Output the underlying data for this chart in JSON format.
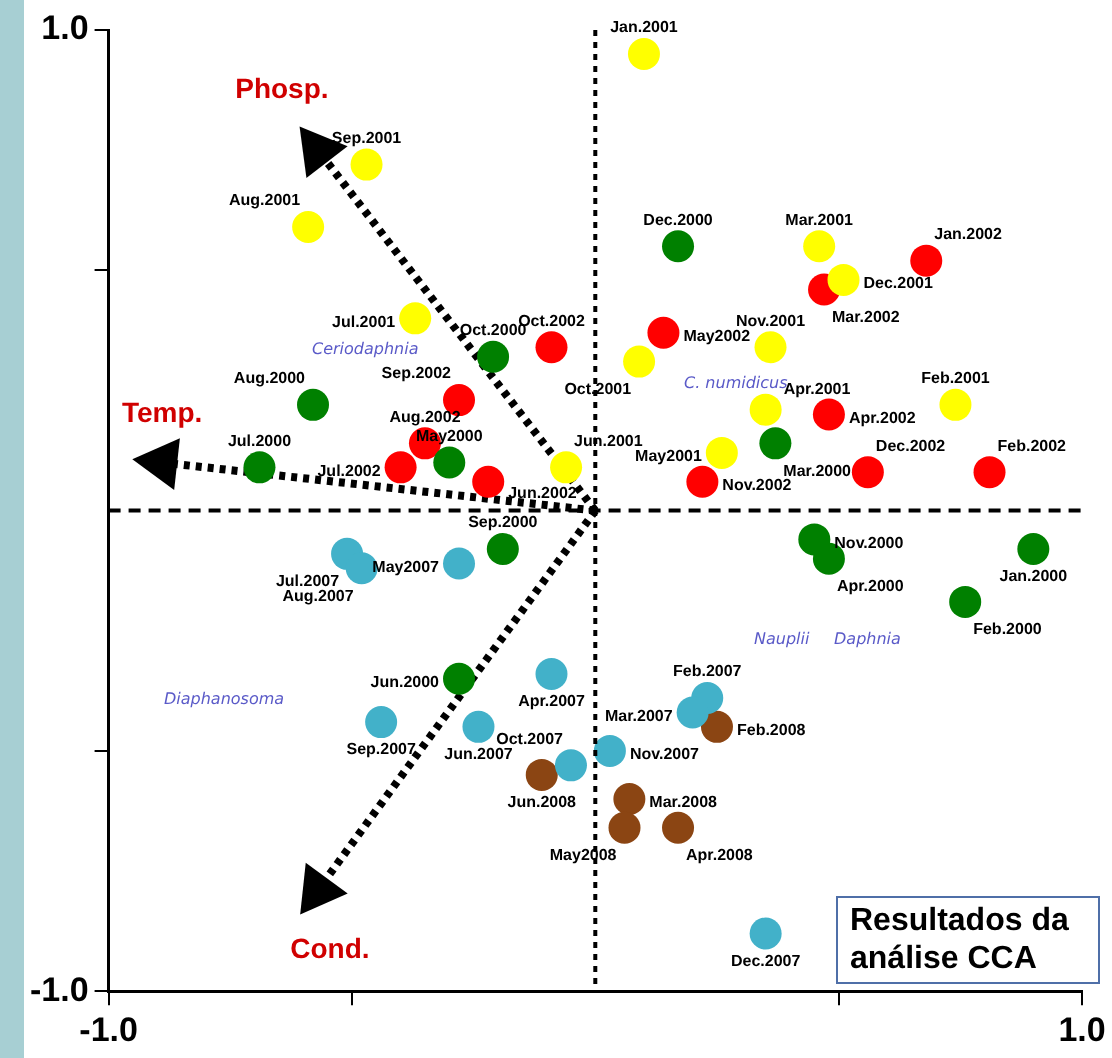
{
  "chart_data": {
    "type": "scatter",
    "xlim": [
      -1,
      1
    ],
    "ylim": [
      -1,
      1
    ],
    "xticks": [
      {
        "value": -1,
        "label": "-1.0"
      },
      {
        "value": -0.5,
        "label": null
      },
      {
        "value": 0.5,
        "label": null
      },
      {
        "value": 1,
        "label": "1.0"
      }
    ],
    "yticks": [
      {
        "value": -1,
        "label": "-1.0"
      },
      {
        "value": -0.5,
        "label": null
      },
      {
        "value": 0.5,
        "label": null
      },
      {
        "value": 1,
        "label": "1.0"
      }
    ],
    "grid": false,
    "legend": false,
    "marker": "circle",
    "series": [
      {
        "color": "#008000",
        "x": [
          -0.21,
          -0.58,
          -0.3,
          -0.69,
          0.17,
          0.37,
          -0.19,
          -0.28,
          0.45,
          0.48,
          0.9,
          0.76
        ],
        "values": [
          0.32,
          0.22,
          0.1,
          0.09,
          0.55,
          0.14,
          -0.08,
          -0.35,
          -0.06,
          -0.1,
          -0.08,
          -0.19
        ],
        "value_labels": [
          "Oct.2000",
          "Aug.2000",
          "May2000",
          "Jul.2000",
          "Dec.2000",
          "Mar.2000",
          "Sep.2000",
          "Jun.2000",
          "Nov.2000",
          "Apr.2000",
          "Jan.2000",
          "Feb.2000"
        ]
      },
      {
        "color": "#ffff00",
        "x": [
          -0.47,
          -0.59,
          -0.37,
          -0.06,
          0.1,
          0.46,
          0.51,
          0.09,
          0.36,
          0.35,
          0.74,
          0.26
        ],
        "values": [
          0.72,
          0.59,
          0.4,
          0.09,
          0.95,
          0.55,
          0.48,
          0.31,
          0.34,
          0.21,
          0.22,
          0.12
        ],
        "value_labels": [
          "Sep.2001",
          "Aug.2001",
          "Jul.2001",
          "Jun.2001",
          "Jan.2001",
          "Mar.2001",
          "Dec.2001",
          "Oct.2001",
          "Nov.2001",
          "Apr.2001",
          "Feb.2001",
          "May2001"
        ]
      },
      {
        "color": "#ff0000",
        "x": [
          -0.09,
          -0.28,
          -0.35,
          -0.4,
          -0.22,
          0.68,
          0.47,
          0.14,
          0.48,
          0.22,
          0.56,
          0.81
        ],
        "values": [
          0.34,
          0.23,
          0.14,
          0.09,
          0.06,
          0.52,
          0.46,
          0.37,
          0.2,
          0.06,
          0.08,
          0.08
        ],
        "value_labels": [
          "Oct.2002",
          "Sep.2002",
          "Aug.2002",
          "Jul.2002",
          "Jun.2002",
          "Jan.2002",
          "Mar.2002",
          "May2002",
          "Apr.2002",
          "Nov.2002",
          "Dec.2002",
          "Feb.2002"
        ]
      },
      {
        "color": "#42b1c9",
        "x": [
          -0.51,
          -0.48,
          -0.28,
          -0.09,
          -0.44,
          -0.24,
          -0.05,
          0.23,
          0.2,
          0.03,
          0.35
        ],
        "values": [
          -0.09,
          -0.12,
          -0.11,
          -0.34,
          -0.44,
          -0.45,
          -0.53,
          -0.39,
          -0.42,
          -0.5,
          -0.88
        ],
        "value_labels": [
          "Jul.2007",
          "Aug.2007",
          "May2007",
          "Apr.2007",
          "Sep.2007",
          "Jun.2007",
          "Oct.2007",
          "Feb.2007",
          "Mar.2007",
          "Nov.2007",
          "Dec.2007"
        ]
      },
      {
        "color": "#8b4513",
        "x": [
          -0.11,
          0.25,
          0.07,
          0.06,
          0.17
        ],
        "values": [
          -0.55,
          -0.45,
          -0.6,
          -0.66,
          -0.66
        ],
        "value_labels": [
          "Jun.2008",
          "Feb.2008",
          "Mar.2008",
          "May2008",
          "Apr.2008"
        ]
      },
      {
        "type": "line",
        "color": "#000000",
        "line_style": "dotted",
        "marker": "triangle",
        "x": [
          0,
          -0.57
        ],
        "values": [
          0,
          0.75
        ],
        "value_labels": [
          null,
          "Phosp."
        ]
      },
      {
        "type": "line",
        "color": "#000000",
        "line_style": "dotted",
        "marker": "triangle",
        "x": [
          0,
          -0.89
        ],
        "values": [
          0,
          0.1
        ],
        "value_labels": [
          null,
          "Temp."
        ]
      },
      {
        "type": "line",
        "color": "#000000",
        "line_style": "dotted",
        "marker": "triangle",
        "x": [
          0,
          -0.57
        ],
        "values": [
          0,
          -0.79
        ],
        "value_labels": [
          null,
          "Cond."
        ]
      }
    ],
    "ref_lines": [
      {
        "axis": "x",
        "value": 0,
        "line_style": "dotted"
      },
      {
        "axis": "y",
        "value": 0,
        "line_style": "dashed"
      }
    ],
    "annotations": [
      "Ceriodaphnia",
      "C. numidicus",
      "Diaphanosoma",
      "Nauplii",
      "Daphnia",
      "Resultados da análise CCA"
    ]
  }
}
